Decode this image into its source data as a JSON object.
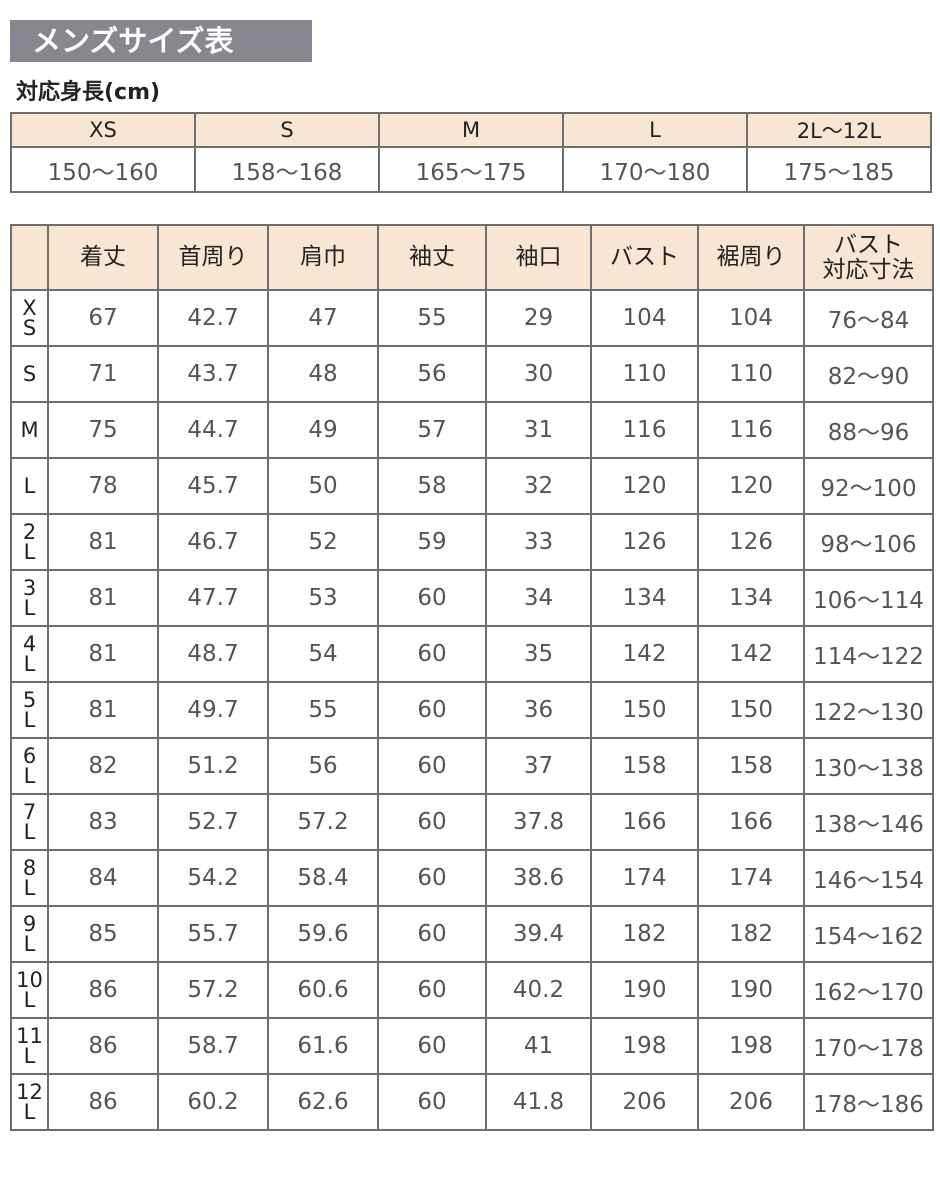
{
  "title": "メンズサイズ表",
  "height_section": {
    "label": "対応身長(cm)",
    "sizes": [
      "XS",
      "S",
      "M",
      "L",
      "2L〜12L"
    ],
    "ranges": [
      "150〜160",
      "158〜168",
      "165〜175",
      "170〜180",
      "175〜185"
    ]
  },
  "size_table": {
    "headers": [
      "",
      "着丈",
      "首周り",
      "肩巾",
      "袖丈",
      "袖口",
      "バスト",
      "裾周り",
      "バスト\n対応寸法"
    ],
    "rows": [
      [
        "XS",
        "67",
        "42.7",
        "47",
        "55",
        "29",
        "104",
        "104",
        "76〜84"
      ],
      [
        "S",
        "71",
        "43.7",
        "48",
        "56",
        "30",
        "110",
        "110",
        "82〜90"
      ],
      [
        "M",
        "75",
        "44.7",
        "49",
        "57",
        "31",
        "116",
        "116",
        "88〜96"
      ],
      [
        "L",
        "78",
        "45.7",
        "50",
        "58",
        "32",
        "120",
        "120",
        "92〜100"
      ],
      [
        "2L",
        "81",
        "46.7",
        "52",
        "59",
        "33",
        "126",
        "126",
        "98〜106"
      ],
      [
        "3L",
        "81",
        "47.7",
        "53",
        "60",
        "34",
        "134",
        "134",
        "106〜114"
      ],
      [
        "4L",
        "81",
        "48.7",
        "54",
        "60",
        "35",
        "142",
        "142",
        "114〜122"
      ],
      [
        "5L",
        "81",
        "49.7",
        "55",
        "60",
        "36",
        "150",
        "150",
        "122〜130"
      ],
      [
        "6L",
        "82",
        "51.2",
        "56",
        "60",
        "37",
        "158",
        "158",
        "130〜138"
      ],
      [
        "7L",
        "83",
        "52.7",
        "57.2",
        "60",
        "37.8",
        "166",
        "166",
        "138〜146"
      ],
      [
        "8L",
        "84",
        "54.2",
        "58.4",
        "60",
        "38.6",
        "174",
        "174",
        "146〜154"
      ],
      [
        "9L",
        "85",
        "55.7",
        "59.6",
        "60",
        "39.4",
        "182",
        "182",
        "154〜162"
      ],
      [
        "10L",
        "86",
        "57.2",
        "60.6",
        "60",
        "40.2",
        "190",
        "190",
        "162〜170"
      ],
      [
        "11L",
        "86",
        "58.7",
        "61.6",
        "60",
        "41",
        "198",
        "198",
        "170〜178"
      ],
      [
        "12L",
        "86",
        "60.2",
        "62.6",
        "60",
        "41.8",
        "206",
        "206",
        "178〜186"
      ]
    ]
  },
  "colors": {
    "title_bg": "#8a8690",
    "header_bg": "#f9e6d2",
    "border": "#6e6e6e"
  }
}
